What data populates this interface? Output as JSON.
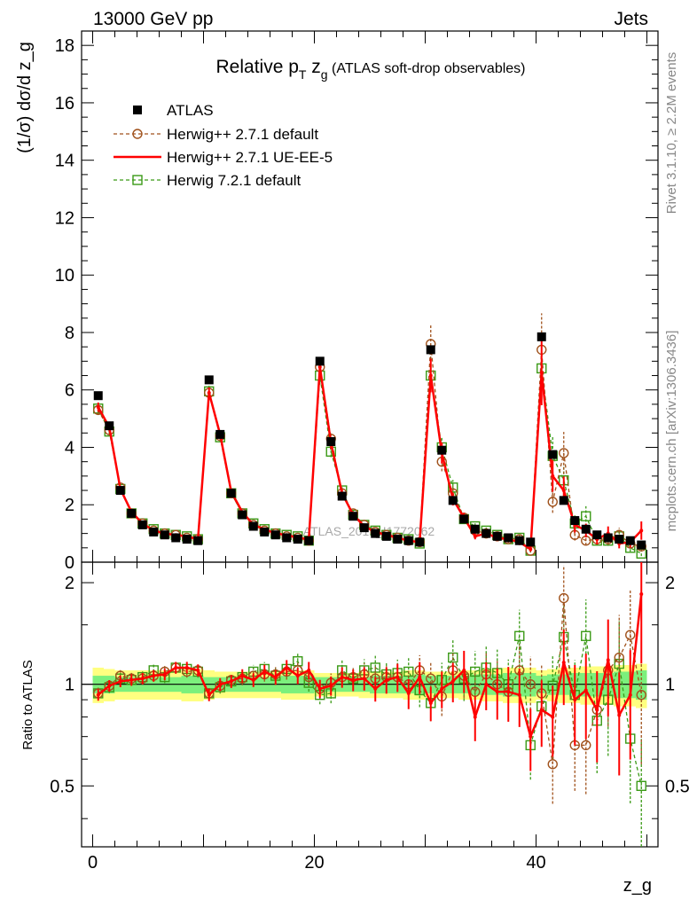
{
  "header": {
    "left": "13000 GeV pp",
    "right": "Jets"
  },
  "side_text": {
    "rivet": "Rivet 3.1.10, ≥ 2.2M events",
    "mcplots": "mcplots.cern.ch [arXiv:1306.3436]"
  },
  "watermark": "ATLAS_2019_I1772062",
  "colors": {
    "atlas": "#000000",
    "h271": "#a0521c",
    "ue": "#ff0000",
    "h721": "#3a9a16",
    "band_inner": "#7cf07c",
    "band_outer": "#ffff80"
  },
  "chart_data": [
    {
      "type": "scatter",
      "title": "Relative p_T z_g (ATLAS soft-drop observables)",
      "title_parts": {
        "main": "Relative p",
        "sub": "T",
        "mid": " z",
        "sub2": "g",
        "tail": " (ATLAS soft-drop observables)"
      },
      "ylabel": "(1/σ) dσ/d z_g",
      "xlim": [
        -1,
        51
      ],
      "ylim": [
        0,
        18.5
      ],
      "yticks": [
        0,
        2,
        4,
        6,
        8,
        10,
        12,
        14,
        16,
        18
      ],
      "legend_position": "top-left",
      "x": [
        0.5,
        1.5,
        2.5,
        3.5,
        4.5,
        5.5,
        6.5,
        7.5,
        8.5,
        9.5,
        10.5,
        11.5,
        12.5,
        13.5,
        14.5,
        15.5,
        16.5,
        17.5,
        18.5,
        19.5,
        20.5,
        21.5,
        22.5,
        23.5,
        24.5,
        25.5,
        26.5,
        27.5,
        28.5,
        29.5,
        30.5,
        31.5,
        32.5,
        33.5,
        34.5,
        35.5,
        36.5,
        37.5,
        38.5,
        39.5,
        40.5,
        41.5,
        42.5,
        43.5,
        44.5,
        45.5,
        46.5,
        47.5,
        48.5,
        49.5
      ],
      "series": [
        {
          "name": "ATLAS",
          "style": "square",
          "values": [
            5.8,
            4.75,
            2.5,
            1.7,
            1.3,
            1.05,
            0.95,
            0.85,
            0.8,
            0.75,
            6.35,
            4.45,
            2.4,
            1.65,
            1.25,
            1.05,
            0.95,
            0.85,
            0.8,
            0.75,
            7.0,
            4.2,
            2.3,
            1.6,
            1.2,
            1.0,
            0.9,
            0.8,
            0.75,
            0.7,
            7.4,
            3.9,
            2.15,
            1.5,
            1.15,
            1.0,
            0.9,
            0.85,
            0.75,
            0.7,
            7.85,
            3.75,
            2.15,
            1.45,
            1.15,
            0.95,
            0.85,
            0.8,
            0.75,
            0.6
          ]
        },
        {
          "name": "Herwig++ 2.7.1 default",
          "style": "circle-dashed",
          "values": [
            5.3,
            4.6,
            2.6,
            1.7,
            1.35,
            1.1,
            1.0,
            0.95,
            0.85,
            0.8,
            5.9,
            4.4,
            2.4,
            1.7,
            1.3,
            1.1,
            1.0,
            0.9,
            0.85,
            0.75,
            6.8,
            4.3,
            2.4,
            1.7,
            1.3,
            1.05,
            0.95,
            0.85,
            0.75,
            0.7,
            7.6,
            3.5,
            2.4,
            1.55,
            1.1,
            1.0,
            0.9,
            0.8,
            0.8,
            0.4,
            7.4,
            2.1,
            3.8,
            0.95,
            0.75,
            0.8,
            0.8,
            0.95,
            0.65,
            0.55
          ]
        },
        {
          "name": "Herwig++ 2.7.1 UE-EE-5",
          "style": "line-solid",
          "values": [
            5.4,
            4.7,
            2.55,
            1.75,
            1.35,
            1.1,
            1.0,
            0.95,
            0.9,
            0.8,
            5.9,
            4.45,
            2.45,
            1.75,
            1.3,
            1.15,
            1.0,
            0.95,
            0.85,
            0.8,
            6.8,
            4.15,
            2.4,
            1.65,
            1.25,
            1.05,
            0.95,
            0.85,
            0.75,
            0.7,
            6.5,
            3.8,
            2.2,
            1.55,
            0.9,
            1.0,
            0.85,
            0.8,
            0.7,
            0.45,
            6.6,
            3.0,
            2.5,
            1.3,
            1.1,
            0.8,
            1.0,
            0.65,
            0.7,
            1.1
          ]
        },
        {
          "name": "Herwig 7.2.1 default",
          "style": "square-open-dashed",
          "values": [
            5.35,
            4.55,
            2.55,
            1.7,
            1.35,
            1.15,
            1.0,
            0.95,
            0.9,
            0.8,
            5.95,
            4.35,
            2.4,
            1.7,
            1.35,
            1.15,
            1.0,
            0.95,
            0.9,
            0.75,
            6.5,
            3.85,
            2.5,
            1.65,
            1.3,
            1.1,
            0.95,
            0.85,
            0.8,
            0.65,
            6.5,
            4.0,
            2.6,
            1.5,
            1.25,
            1.1,
            0.95,
            0.8,
            0.85,
            0.4,
            6.75,
            3.7,
            2.85,
            1.35,
            1.6,
            0.75,
            0.75,
            0.9,
            0.5,
            0.3
          ]
        }
      ]
    },
    {
      "type": "scatter",
      "ylabel": "Ratio to ATLAS",
      "xlabel": "z_g",
      "xlim": [
        -1,
        51
      ],
      "ylim": [
        0.33,
        2.3
      ],
      "yticks": [
        0.5,
        1,
        2
      ],
      "xticks": [
        0,
        20,
        40
      ],
      "x": [
        0.5,
        1.5,
        2.5,
        3.5,
        4.5,
        5.5,
        6.5,
        7.5,
        8.5,
        9.5,
        10.5,
        11.5,
        12.5,
        13.5,
        14.5,
        15.5,
        16.5,
        17.5,
        18.5,
        19.5,
        20.5,
        21.5,
        22.5,
        23.5,
        24.5,
        25.5,
        26.5,
        27.5,
        28.5,
        29.5,
        30.5,
        31.5,
        32.5,
        33.5,
        34.5,
        35.5,
        36.5,
        37.5,
        38.5,
        39.5,
        40.5,
        41.5,
        42.5,
        43.5,
        44.5,
        45.5,
        46.5,
        47.5,
        48.5,
        49.5
      ],
      "band_inner": [
        0.06,
        0.06,
        0.05,
        0.05,
        0.05,
        0.05,
        0.05,
        0.05,
        0.06,
        0.06,
        0.05,
        0.05,
        0.05,
        0.05,
        0.05,
        0.05,
        0.05,
        0.06,
        0.06,
        0.06,
        0.05,
        0.05,
        0.05,
        0.05,
        0.05,
        0.06,
        0.06,
        0.06,
        0.06,
        0.07,
        0.06,
        0.06,
        0.06,
        0.06,
        0.07,
        0.07,
        0.07,
        0.08,
        0.08,
        0.08,
        0.06,
        0.07,
        0.07,
        0.08,
        0.08,
        0.08,
        0.08,
        0.09,
        0.09,
        0.1
      ],
      "band_outer": [
        0.12,
        0.11,
        0.1,
        0.1,
        0.1,
        0.1,
        0.1,
        0.1,
        0.11,
        0.11,
        0.1,
        0.09,
        0.09,
        0.09,
        0.09,
        0.09,
        0.09,
        0.1,
        0.1,
        0.1,
        0.08,
        0.08,
        0.08,
        0.08,
        0.09,
        0.09,
        0.09,
        0.09,
        0.1,
        0.1,
        0.09,
        0.09,
        0.09,
        0.1,
        0.1,
        0.11,
        0.11,
        0.12,
        0.12,
        0.12,
        0.1,
        0.11,
        0.12,
        0.12,
        0.13,
        0.13,
        0.13,
        0.14,
        0.14,
        0.15
      ],
      "series": [
        {
          "name": "Herwig++ 2.7.1 default",
          "values": [
            0.94,
            0.99,
            1.06,
            1.04,
            1.04,
            1.06,
            1.09,
            1.12,
            1.09,
            1.1,
            0.94,
            0.99,
            1.03,
            1.04,
            1.06,
            1.07,
            1.07,
            1.09,
            1.1,
            1.05,
            0.97,
            1.01,
            1.05,
            1.05,
            1.07,
            1.04,
            1.05,
            1.05,
            1.0,
            1.1,
            1.04,
            0.92,
            1.1,
            1.06,
            0.95,
            1.07,
            1.0,
            0.95,
            1.1,
            1.0,
            0.94,
            0.58,
            1.8,
            0.66,
            0.66,
            0.84,
            1.1,
            1.2,
            1.4,
            0.93
          ]
        },
        {
          "name": "Herwig++ 2.7.1 UE-EE-5",
          "values": [
            0.93,
            0.99,
            1.02,
            1.03,
            1.04,
            1.06,
            1.07,
            1.12,
            1.12,
            1.1,
            0.93,
            1.0,
            1.02,
            1.06,
            1.03,
            1.09,
            1.05,
            1.12,
            1.06,
            1.1,
            0.97,
            0.99,
            1.05,
            1.03,
            1.04,
            0.97,
            1.03,
            1.05,
            0.94,
            1.05,
            0.88,
            0.97,
            1.02,
            1.1,
            0.8,
            1.0,
            0.95,
            0.95,
            0.93,
            0.7,
            0.84,
            0.8,
            1.16,
            0.9,
            0.96,
            0.84,
            1.18,
            0.81,
            0.93,
            1.85
          ]
        },
        {
          "name": "Herwig 7.2.1 default",
          "values": [
            0.94,
            0.98,
            1.04,
            1.03,
            1.05,
            1.1,
            1.05,
            1.12,
            1.11,
            1.09,
            0.94,
            0.98,
            1.02,
            1.05,
            1.09,
            1.11,
            1.06,
            1.11,
            1.17,
            1.01,
            0.93,
            0.94,
            1.1,
            1.04,
            1.1,
            1.12,
            1.07,
            1.08,
            1.09,
            0.96,
            0.88,
            1.03,
            1.2,
            1.04,
            1.09,
            1.12,
            1.08,
            1.0,
            1.39,
            0.66,
            0.86,
            0.99,
            1.38,
            0.93,
            1.39,
            0.78,
            0.9,
            1.15,
            0.69,
            0.5
          ]
        }
      ]
    }
  ]
}
